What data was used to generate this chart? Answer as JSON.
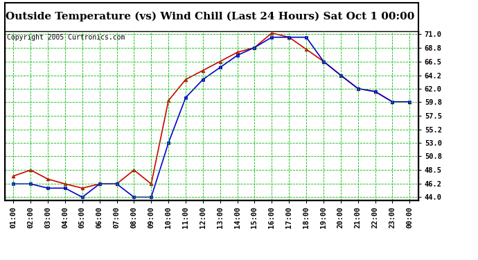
{
  "title": "Outside Temperature (vs) Wind Chill (Last 24 Hours) Sat Oct 1 00:00",
  "copyright": "Copyright 2005 Curtronics.com",
  "x_labels": [
    "01:00",
    "02:00",
    "03:00",
    "04:00",
    "05:00",
    "06:00",
    "07:00",
    "08:00",
    "09:00",
    "10:00",
    "11:00",
    "12:00",
    "13:00",
    "14:00",
    "15:00",
    "16:00",
    "17:00",
    "18:00",
    "19:00",
    "20:00",
    "21:00",
    "22:00",
    "23:00",
    "00:00"
  ],
  "red_data": [
    47.5,
    48.5,
    47.0,
    46.2,
    45.5,
    46.2,
    46.2,
    48.5,
    46.2,
    60.0,
    63.5,
    65.0,
    66.5,
    68.0,
    68.8,
    71.2,
    70.5,
    68.5,
    66.5,
    64.2,
    62.0,
    61.5,
    59.8,
    59.8
  ],
  "blue_data": [
    46.2,
    46.2,
    45.5,
    45.5,
    44.0,
    46.2,
    46.2,
    44.0,
    44.0,
    53.0,
    60.5,
    63.5,
    65.5,
    67.5,
    68.8,
    70.5,
    70.5,
    70.5,
    66.5,
    64.2,
    62.0,
    61.5,
    59.8,
    59.8
  ],
  "red_color": "#cc0000",
  "blue_color": "#0000cc",
  "bg_color": "#ffffff",
  "grid_color": "#00bb00",
  "y_ticks": [
    44.0,
    46.2,
    48.5,
    50.8,
    53.0,
    55.2,
    57.5,
    59.8,
    62.0,
    64.2,
    66.5,
    68.8,
    71.0
  ],
  "y_min": 44.0,
  "y_max": 71.0,
  "title_fontsize": 11,
  "copyright_fontsize": 7,
  "tick_fontsize": 7.5
}
